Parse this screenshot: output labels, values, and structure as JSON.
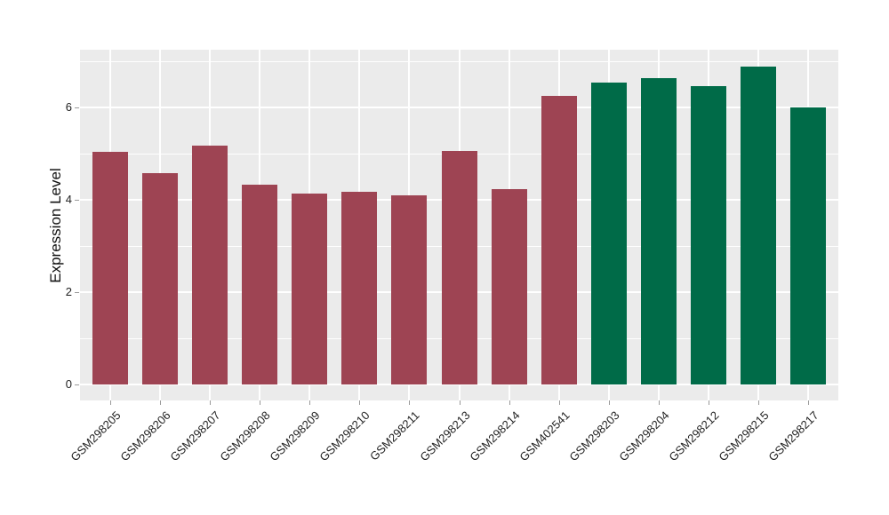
{
  "chart_data": {
    "type": "bar",
    "title": "",
    "xlabel": "",
    "ylabel": "Expression Level",
    "categories": [
      "GSM298205",
      "GSM298206",
      "GSM298207",
      "GSM298208",
      "GSM298209",
      "GSM298210",
      "GSM298211",
      "GSM298213",
      "GSM298214",
      "GSM402541",
      "GSM298203",
      "GSM298204",
      "GSM298212",
      "GSM298215",
      "GSM298217"
    ],
    "values": [
      5.04,
      4.57,
      5.17,
      4.33,
      4.13,
      4.16,
      4.09,
      5.06,
      4.22,
      6.24,
      6.53,
      6.62,
      6.45,
      6.87,
      5.99
    ],
    "groups": [
      "A",
      "A",
      "A",
      "A",
      "A",
      "A",
      "A",
      "A",
      "A",
      "A",
      "B",
      "B",
      "B",
      "B",
      "B"
    ],
    "group_colors": {
      "A": "#9E4453",
      "B": "#006B48"
    },
    "yticks": [
      0,
      2,
      4,
      6
    ],
    "yticks_minor": [
      1,
      3,
      5,
      7
    ],
    "ylim": [
      -0.35,
      7.24
    ],
    "legend": "none",
    "grid": "major and minor horizontal, major vertical at each bar center",
    "panel_background": "#EBEBEB",
    "gridline_color": "#FFFFFF",
    "axis_text_color": "#1F1F1F",
    "tick_mark_color": "#9A9A9A",
    "x_label_angle_deg": -45
  }
}
